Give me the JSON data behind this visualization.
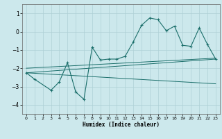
{
  "title": "",
  "xlabel": "Humidex (Indice chaleur)",
  "ylabel": "",
  "bg_color": "#cce8ec",
  "grid_color": "#aed0d6",
  "line_color": "#1a6e6a",
  "xlim": [
    -0.5,
    23.5
  ],
  "ylim": [
    -4.5,
    1.5
  ],
  "yticks": [
    1,
    0,
    -1,
    -2,
    -3,
    -4
  ],
  "xticks": [
    0,
    1,
    2,
    3,
    4,
    5,
    6,
    7,
    8,
    9,
    10,
    11,
    12,
    13,
    14,
    15,
    16,
    17,
    18,
    19,
    20,
    21,
    22,
    23
  ],
  "main_x": [
    0,
    1,
    3,
    4,
    5,
    6,
    7,
    8,
    9,
    10,
    11,
    12,
    13,
    14,
    15,
    16,
    17,
    18,
    19,
    20,
    21,
    22,
    23
  ],
  "main_y": [
    -2.25,
    -2.6,
    -3.2,
    -2.75,
    -1.7,
    -3.3,
    -3.7,
    -0.85,
    -1.55,
    -1.5,
    -1.5,
    -1.35,
    -0.55,
    0.35,
    0.75,
    0.65,
    0.05,
    0.3,
    -0.75,
    -0.8,
    0.2,
    -0.7,
    -1.5
  ],
  "line1_x": [
    0,
    23
  ],
  "line1_y": [
    -2.25,
    -1.5
  ],
  "line2_x": [
    0,
    23
  ],
  "line2_y": [
    -2.25,
    -2.85
  ],
  "line3_x": [
    0,
    23
  ],
  "line3_y": [
    -2.0,
    -1.45
  ]
}
